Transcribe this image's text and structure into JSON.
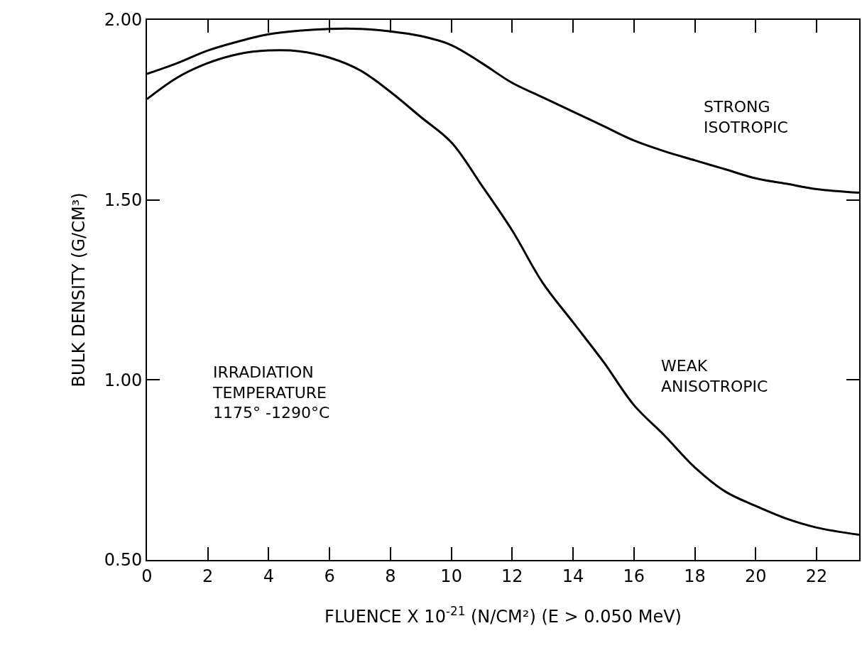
{
  "chart_data": {
    "type": "line",
    "xlabel": "FLUENCE X 10$^{-21}$ (N/CM²) (E > 0.050 MeV)",
    "ylabel": "BULK DENSITY (G/CM³)",
    "x": [
      0,
      1,
      2,
      3,
      4,
      5,
      6,
      7,
      8,
      9,
      10,
      11,
      12,
      13,
      14,
      15,
      16,
      17,
      18,
      19,
      20,
      21,
      22,
      23.4
    ],
    "series": [
      {
        "name": "STRONG\nISOTROPIC",
        "color": "#000000",
        "values": [
          1.85,
          1.88,
          1.915,
          1.94,
          1.96,
          1.97,
          1.975,
          1.975,
          1.968,
          1.955,
          1.93,
          1.88,
          1.825,
          1.785,
          1.745,
          1.705,
          1.665,
          1.635,
          1.61,
          1.585,
          1.56,
          1.545,
          1.53,
          1.52
        ]
      },
      {
        "name": "WEAK\nANISOTROPIC",
        "color": "#000000",
        "values": [
          1.78,
          1.84,
          1.88,
          1.905,
          1.915,
          1.913,
          1.895,
          1.86,
          1.8,
          1.73,
          1.66,
          1.54,
          1.415,
          1.27,
          1.16,
          1.05,
          0.93,
          0.846,
          0.757,
          0.69,
          0.65,
          0.615,
          0.59,
          0.57
        ]
      }
    ],
    "annotations": [
      "IRRADIATION\nTEMPERATURE\n1175° -1290°C"
    ],
    "xlim": [
      0,
      23.4
    ],
    "xticks": [
      0,
      2,
      4,
      6,
      8,
      10,
      12,
      14,
      16,
      18,
      20,
      22
    ],
    "ylim": [
      0.5,
      2.0
    ],
    "yticks": [
      {
        "value": 0.5,
        "label": "0.50"
      },
      {
        "value": 1.0,
        "label": "1.00"
      },
      {
        "value": 1.5,
        "label": "1.50"
      },
      {
        "value": 2.0,
        "label": "2.00"
      }
    ],
    "legend": false,
    "marker": "none",
    "line_style": "solid"
  }
}
